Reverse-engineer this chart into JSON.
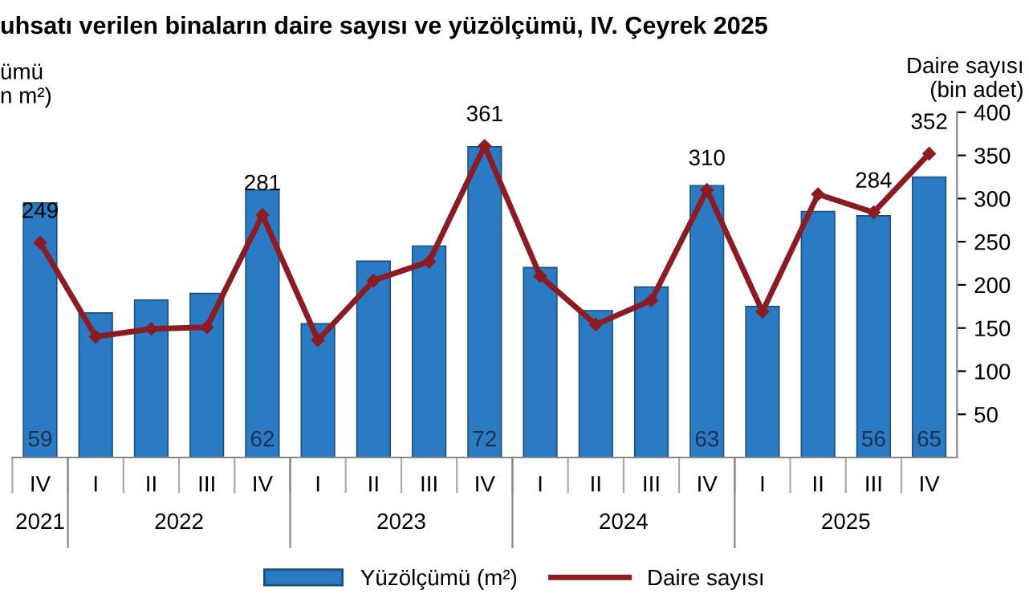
{
  "chart_data": {
    "type": "bar",
    "title": "uhsatı verilen binaların daire sayısı ve yüzölçümü, IV. Çeyrek 2025",
    "ylabel": "ümü\nn m²)",
    "y2label": "Daire sayısı\n(bin adet)",
    "categories": [
      "IV",
      "I",
      "II",
      "III",
      "IV",
      "I",
      "II",
      "III",
      "IV",
      "I",
      "II",
      "III",
      "IV",
      "I",
      "II",
      "III",
      "IV"
    ],
    "annotations": [
      "2021",
      "2022",
      "2023",
      "2024",
      "2025"
    ],
    "series": [
      {
        "name": "Yüzölçümü (m²)",
        "color": "#2a7bc4",
        "values": [
          59,
          33.5,
          36.5,
          38,
          62,
          31,
          45.5,
          49,
          72,
          44,
          34,
          39.5,
          63,
          35,
          57,
          56,
          65
        ],
        "value_labels": [
          "59",
          null,
          null,
          null,
          "62",
          null,
          null,
          null,
          "72",
          null,
          null,
          null,
          "63",
          null,
          null,
          "56",
          "65"
        ]
      },
      {
        "name": "Daire sayısı",
        "type": "line",
        "axis": "y2",
        "color": "#8b1c24",
        "marker": "diamond",
        "values": [
          249,
          140,
          149,
          151,
          281,
          136,
          205,
          227,
          361,
          210,
          154,
          182,
          310,
          169,
          305,
          284,
          352
        ],
        "value_labels": [
          "249",
          null,
          null,
          null,
          "281",
          null,
          null,
          null,
          "361",
          null,
          null,
          null,
          "310",
          null,
          null,
          "284",
          "352"
        ]
      }
    ],
    "ylim": [
      0,
      80
    ],
    "y2lim": [
      0,
      400
    ],
    "y2ticks": [
      50,
      100,
      150,
      200,
      250,
      300,
      350,
      400
    ],
    "legend": "bottom",
    "grid": false
  }
}
